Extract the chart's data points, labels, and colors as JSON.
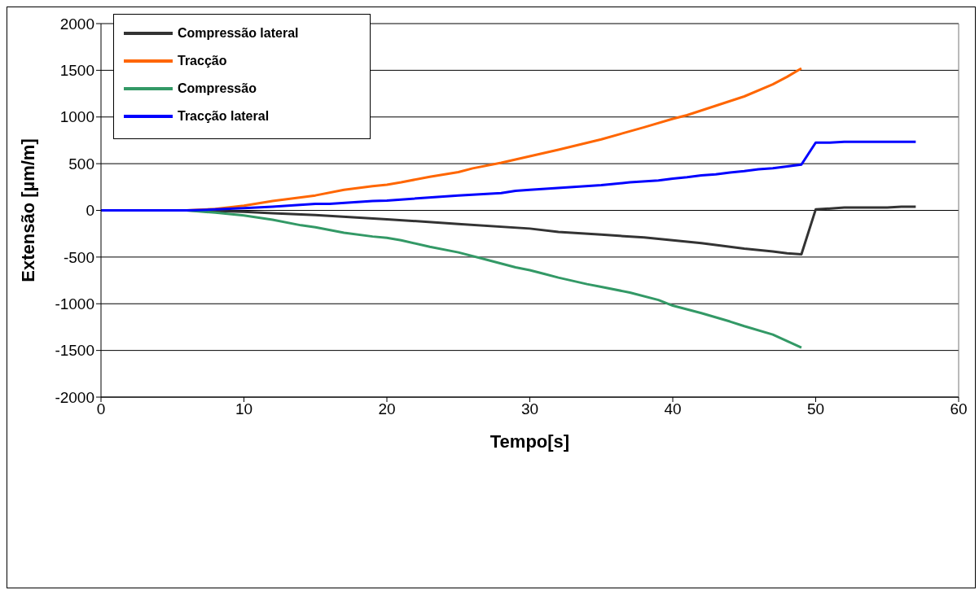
{
  "chart_data": {
    "type": "line",
    "xlabel": "Tempo[s]",
    "ylabel": "Extensão [µm/m]",
    "xlim": [
      0,
      60
    ],
    "xticks": [
      0,
      10,
      20,
      30,
      40,
      50,
      60
    ],
    "ylim": [
      -2000,
      2000
    ],
    "yticks": [
      -2000,
      -1500,
      -1000,
      -500,
      0,
      500,
      1000,
      1500,
      2000
    ],
    "grid": "y",
    "legend": "top left",
    "marker": "none",
    "line_style": "solid",
    "series": [
      {
        "name": "Compressão lateral",
        "color": "#333333",
        "x": [
          0,
          6,
          10,
          12,
          15,
          20,
          25,
          30,
          32,
          35,
          38,
          40,
          42,
          45,
          47,
          48,
          49,
          50,
          52,
          55,
          56,
          57
        ],
        "values": [
          0,
          0,
          -15,
          -30,
          -50,
          -95,
          -145,
          -195,
          -230,
          -260,
          -290,
          -320,
          -350,
          -410,
          -440,
          -460,
          -470,
          10,
          30,
          30,
          40,
          40
        ]
      },
      {
        "name": "Tracção",
        "color": "#ff6600",
        "x": [
          0,
          6,
          8,
          10,
          12,
          15,
          17,
          19,
          20,
          21,
          23,
          25,
          26,
          28,
          30,
          32,
          35,
          38,
          40,
          41,
          43,
          45,
          47,
          48,
          49
        ],
        "values": [
          0,
          0,
          15,
          50,
          100,
          160,
          220,
          260,
          275,
          300,
          360,
          410,
          450,
          510,
          580,
          650,
          760,
          890,
          980,
          1020,
          1120,
          1220,
          1350,
          1430,
          1520
        ]
      },
      {
        "name": "Compressão",
        "color": "#339966",
        "x": [
          0,
          6,
          8,
          10,
          12,
          14,
          15,
          17,
          19,
          20,
          21,
          23,
          25,
          27,
          29,
          30,
          31,
          32,
          34,
          35,
          37,
          39,
          40,
          42,
          44,
          45,
          47,
          48,
          49
        ],
        "values": [
          0,
          0,
          -25,
          -55,
          -100,
          -160,
          -180,
          -240,
          -280,
          -295,
          -320,
          -390,
          -450,
          -530,
          -610,
          -640,
          -680,
          -720,
          -790,
          -820,
          -880,
          -960,
          -1020,
          -1100,
          -1190,
          -1240,
          -1330,
          -1400,
          -1470
        ]
      },
      {
        "name": "Tracção lateral",
        "color": "#0000ff",
        "x": [
          0,
          6,
          8,
          10,
          12,
          15,
          16,
          19,
          20,
          25,
          28,
          29,
          30,
          35,
          37,
          39,
          40,
          41,
          42,
          43,
          44,
          45,
          46,
          47,
          48,
          49,
          50,
          51,
          52,
          57
        ],
        "values": [
          0,
          0,
          10,
          25,
          40,
          70,
          70,
          100,
          105,
          160,
          185,
          210,
          220,
          270,
          300,
          320,
          340,
          355,
          375,
          385,
          405,
          420,
          440,
          450,
          470,
          490,
          725,
          725,
          735,
          735
        ]
      }
    ]
  }
}
